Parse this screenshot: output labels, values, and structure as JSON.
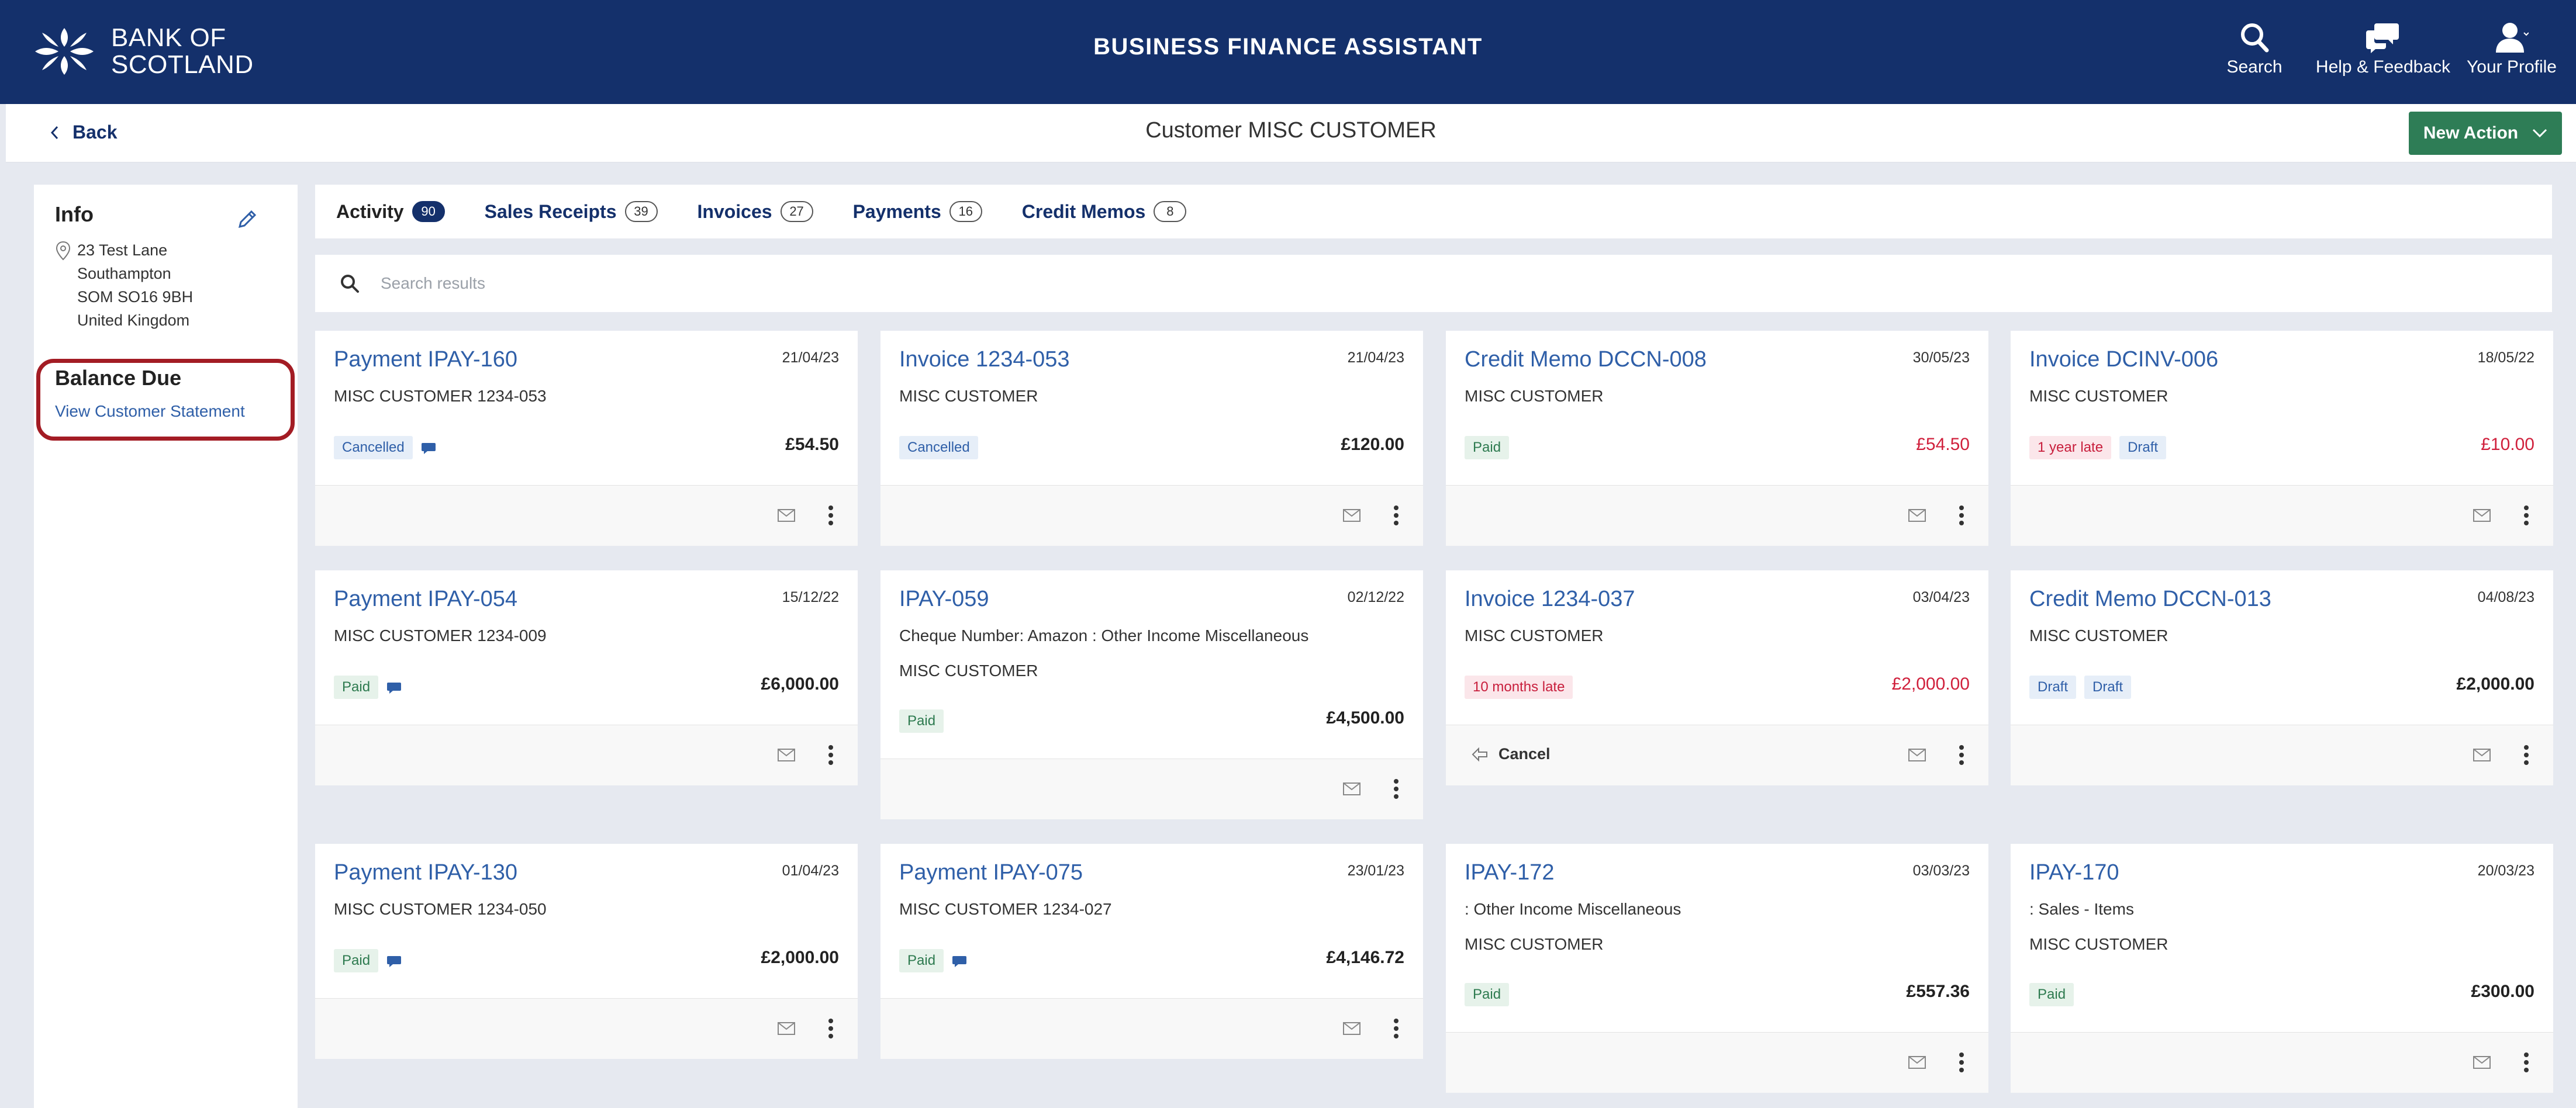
{
  "header": {
    "brand_line1": "BANK OF",
    "brand_line2": "SCOTLAND",
    "app_title": "BUSINESS FINANCE ASSISTANT",
    "actions": {
      "search": "Search",
      "help": "Help & Feedback",
      "profile": "Your Profile"
    }
  },
  "subheader": {
    "back": "Back",
    "title": "Customer MISC CUSTOMER",
    "new_action": "New Action"
  },
  "info": {
    "title": "Info",
    "address": [
      "23 Test Lane",
      "Southampton",
      "SOM SO16 9BH",
      "United Kingdom"
    ],
    "balance_title": "Balance Due",
    "statement_link": "View Customer Statement"
  },
  "tabs": [
    {
      "label": "Activity",
      "count": "90"
    },
    {
      "label": "Sales Receipts",
      "count": "39"
    },
    {
      "label": "Invoices",
      "count": "27"
    },
    {
      "label": "Payments",
      "count": "16"
    },
    {
      "label": "Credit Memos",
      "count": "8"
    }
  ],
  "search": {
    "placeholder": "Search results"
  },
  "cards": [
    {
      "title": "Payment IPAY-160",
      "date": "21/04/23",
      "lines": [
        "MISC CUSTOMER 1234-053"
      ],
      "badges": [
        "Cancelled"
      ],
      "amount": "£54.50"
    },
    {
      "title": "Invoice 1234-053",
      "date": "21/04/23",
      "lines": [
        "MISC CUSTOMER"
      ],
      "badges": [
        "Cancelled"
      ],
      "amount": "£120.00"
    },
    {
      "title": "Credit Memo DCCN-008",
      "date": "30/05/23",
      "lines": [
        "MISC CUSTOMER"
      ],
      "badges": [
        "Paid"
      ],
      "amount": "£54.50"
    },
    {
      "title": "Invoice DCINV-006",
      "date": "18/05/22",
      "lines": [
        "MISC CUSTOMER"
      ],
      "badges": [
        "1 year late",
        "Draft"
      ],
      "amount": "£10.00"
    },
    {
      "title": "Payment IPAY-054",
      "date": "15/12/22",
      "lines": [
        "MISC CUSTOMER 1234-009"
      ],
      "badges": [
        "Paid"
      ],
      "amount": "£6,000.00"
    },
    {
      "title": "IPAY-059",
      "date": "02/12/22",
      "lines": [
        "Cheque Number: Amazon : Other Income Miscellaneous",
        "MISC CUSTOMER"
      ],
      "badges": [
        "Paid"
      ],
      "amount": "£4,500.00"
    },
    {
      "title": "Invoice 1234-037",
      "date": "03/04/23",
      "lines": [
        "MISC CUSTOMER"
      ],
      "badges": [
        "10 months late"
      ],
      "amount": "£2,000.00",
      "footer_action": "Cancel"
    },
    {
      "title": "Credit Memo DCCN-013",
      "date": "04/08/23",
      "lines": [
        "MISC CUSTOMER"
      ],
      "badges": [
        "Draft",
        "Draft"
      ],
      "amount": "£2,000.00"
    },
    {
      "title": "Payment IPAY-130",
      "date": "01/04/23",
      "lines": [
        "MISC CUSTOMER 1234-050"
      ],
      "badges": [
        "Paid"
      ],
      "amount": "£2,000.00"
    },
    {
      "title": "Payment IPAY-075",
      "date": "23/01/23",
      "lines": [
        "MISC CUSTOMER 1234-027"
      ],
      "badges": [
        "Paid"
      ],
      "amount": "£4,146.72"
    },
    {
      "title": "IPAY-172",
      "date": "03/03/23",
      "lines": [
        ": Other Income Miscellaneous",
        "MISC CUSTOMER"
      ],
      "badges": [
        "Paid"
      ],
      "amount": "£557.36"
    },
    {
      "title": "IPAY-170",
      "date": "20/03/23",
      "lines": [
        ": Sales - Items",
        "MISC CUSTOMER"
      ],
      "badges": [
        "Paid"
      ],
      "amount": "£300.00"
    }
  ],
  "colors": {
    "header_bg": "#14306b",
    "new_action_bg": "#2e7d56",
    "link": "#2f5fa8",
    "overdue_red": "#d0203c",
    "highlight_ring": "#a31c24"
  }
}
